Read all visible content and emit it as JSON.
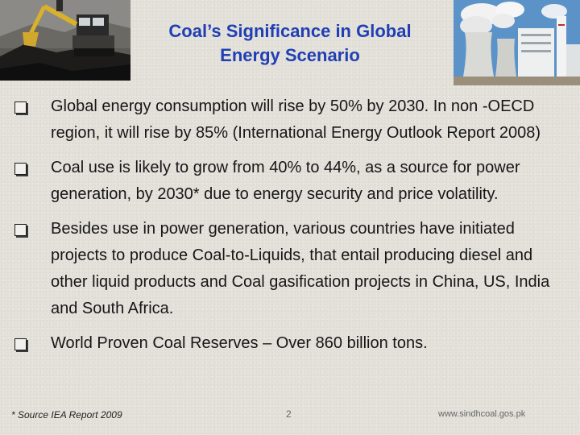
{
  "slide": {
    "title_line1": "Coal’s Significance in Global",
    "title_line2": "Energy Scenario",
    "bullets": [
      {
        "text": "Global energy consumption will rise by 50% by 2030. In non -OECD region, it will rise by 85% (International Energy Outlook Report 2008)"
      },
      {
        "text": "Coal use is likely to grow from 40% to 44%, as a source for power generation, by 2030* due to energy security and price volatility."
      },
      {
        "text": "Besides use in power generation, various countries have initiated projects to produce Coal-to-Liquids, that entail producing diesel and other liquid products and Coal gasification projects in China, US, India and South Africa."
      },
      {
        "text": "World Proven Coal Reserves – Over 860 billion tons."
      }
    ],
    "footer": {
      "source": "* Source IEA Report 2009",
      "page_number": "2",
      "website": "www.sindhcoal.gos.pk"
    }
  },
  "images": {
    "left": "coal-mining-excavator-photo",
    "right": "power-plant-cooling-towers-photo"
  },
  "colors": {
    "title": "#1f3fb3",
    "text": "#161616",
    "background": "#e4e1db"
  }
}
